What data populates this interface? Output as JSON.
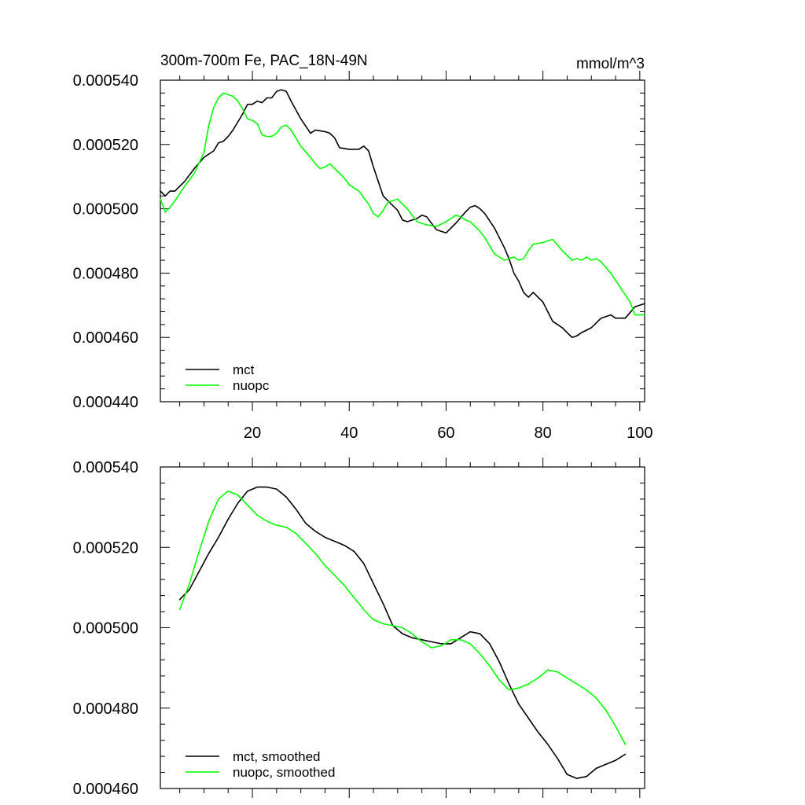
{
  "chart_data": [
    {
      "type": "line",
      "title": "300m-700m Fe, PAC_18N-49N",
      "units": "mmol/m^3",
      "xlabel": "",
      "ylabel": "",
      "xlim": [
        1,
        101
      ],
      "ylim": [
        0.00044,
        0.00054
      ],
      "xticks": [
        20,
        40,
        60,
        80,
        100
      ],
      "xtick_labels": [
        "20",
        "40",
        "60",
        "80",
        "100"
      ],
      "yticks": [
        0.00044,
        0.00046,
        0.00048,
        0.0005,
        0.00052,
        0.00054
      ],
      "ytick_labels": [
        "0.000440",
        "0.000460",
        "0.000480",
        "0.000500",
        "0.000520",
        "0.000540"
      ],
      "legend_position": "bottom-left",
      "series": [
        {
          "name": "mct",
          "color": "#000000",
          "x": [
            1,
            2,
            3,
            4,
            6,
            8,
            10,
            12,
            13,
            14,
            15,
            16,
            18,
            19,
            20,
            21,
            22,
            23,
            24,
            25,
            26,
            27,
            28,
            30,
            32,
            33,
            35,
            36,
            37,
            38,
            40,
            42,
            43,
            44,
            45,
            47,
            48,
            50,
            51,
            52,
            54,
            55,
            56,
            58,
            60,
            62,
            64,
            65,
            66,
            67,
            68,
            70,
            72,
            73,
            74,
            75,
            76,
            77,
            78,
            80,
            81,
            82,
            84,
            85,
            86,
            87,
            88,
            90,
            92,
            94,
            95,
            96,
            97,
            99,
            101
          ],
          "values": [
            0.0005055,
            0.000504,
            0.0005055,
            0.0005055,
            0.0005085,
            0.0005125,
            0.000516,
            0.000518,
            0.0005205,
            0.000521,
            0.0005225,
            0.0005245,
            0.0005295,
            0.0005325,
            0.0005325,
            0.0005335,
            0.000533,
            0.0005345,
            0.0005345,
            0.0005365,
            0.000537,
            0.0005365,
            0.0005335,
            0.000528,
            0.0005235,
            0.0005245,
            0.000524,
            0.0005235,
            0.000522,
            0.000519,
            0.0005185,
            0.0005185,
            0.0005195,
            0.000518,
            0.000513,
            0.000504,
            0.0005025,
            0.0004995,
            0.0004965,
            0.000496,
            0.000497,
            0.000498,
            0.0004975,
            0.0004935,
            0.0004925,
            0.0004955,
            0.000499,
            0.0005005,
            0.000501,
            0.0005,
            0.0004985,
            0.000494,
            0.000488,
            0.0004845,
            0.00048,
            0.0004775,
            0.000474,
            0.0004725,
            0.000474,
            0.000471,
            0.000468,
            0.000465,
            0.000463,
            0.0004615,
            0.00046,
            0.0004605,
            0.0004615,
            0.000463,
            0.000466,
            0.000467,
            0.000466,
            0.000466,
            0.000466,
            0.0004695,
            0.0004705
          ]
        },
        {
          "name": "nuopc",
          "color": "#00ff00",
          "x": [
            1,
            2,
            3,
            4,
            6,
            8,
            10,
            11,
            12,
            13,
            14,
            15,
            16,
            17,
            18,
            19,
            20,
            21,
            22,
            23,
            24,
            25,
            26,
            27,
            28,
            30,
            32,
            33,
            34,
            35,
            36,
            37,
            39,
            40,
            42,
            44,
            45,
            46,
            47,
            48,
            50,
            52,
            54,
            56,
            58,
            60,
            61,
            62,
            63,
            64,
            65,
            66,
            67,
            68,
            70,
            72,
            74,
            75,
            76,
            77,
            78,
            80,
            82,
            84,
            86,
            87,
            88,
            89,
            90,
            91,
            92,
            94,
            96,
            98,
            99,
            101
          ],
          "values": [
            0.000503,
            0.000499,
            0.0005005,
            0.0005025,
            0.000507,
            0.000511,
            0.0005175,
            0.000526,
            0.0005315,
            0.0005345,
            0.000536,
            0.0005355,
            0.000535,
            0.0005335,
            0.000531,
            0.000528,
            0.0005275,
            0.0005265,
            0.000523,
            0.0005225,
            0.0005225,
            0.0005235,
            0.0005255,
            0.000526,
            0.0005245,
            0.0005195,
            0.000516,
            0.000514,
            0.0005125,
            0.000513,
            0.000514,
            0.0005125,
            0.0005095,
            0.0005075,
            0.0005055,
            0.0005015,
            0.0004985,
            0.0004975,
            0.0004995,
            0.000502,
            0.000503,
            0.0005,
            0.000496,
            0.000495,
            0.0004945,
            0.000496,
            0.000497,
            0.000498,
            0.0004975,
            0.0004965,
            0.000496,
            0.0004945,
            0.000493,
            0.000491,
            0.000486,
            0.000484,
            0.000485,
            0.000484,
            0.0004845,
            0.000487,
            0.000489,
            0.0004895,
            0.0004905,
            0.000487,
            0.000484,
            0.0004845,
            0.000484,
            0.000485,
            0.000484,
            0.0004845,
            0.0004835,
            0.00048,
            0.0004755,
            0.000471,
            0.000467,
            0.000467
          ]
        }
      ]
    },
    {
      "type": "line",
      "title": "",
      "xlabel": "",
      "ylabel": "",
      "xlim": [
        1,
        101
      ],
      "ylim": [
        0.00046,
        0.00054
      ],
      "xticks": [
        20,
        40,
        60,
        80,
        100
      ],
      "xtick_labels": [],
      "yticks": [
        0.00046,
        0.00048,
        0.0005,
        0.00052,
        0.00054
      ],
      "ytick_labels": [
        "0.000460",
        "0.000480",
        "0.000500",
        "0.000520",
        "0.000540"
      ],
      "legend_position": "bottom-left",
      "series": [
        {
          "name": "mct, smoothed",
          "color": "#000000",
          "x": [
            5,
            7,
            9,
            11,
            13,
            15,
            17,
            19,
            21,
            23,
            25,
            27,
            29,
            31,
            33,
            35,
            37,
            39,
            41,
            43,
            45,
            47,
            49,
            51,
            53,
            55,
            57,
            59,
            61,
            63,
            65,
            67,
            69,
            71,
            73,
            75,
            77,
            79,
            81,
            83,
            85,
            87,
            89,
            91,
            93,
            95,
            97
          ],
          "values": [
            0.000507,
            0.0005095,
            0.000514,
            0.0005185,
            0.0005225,
            0.000527,
            0.000531,
            0.000534,
            0.000535,
            0.000535,
            0.0005345,
            0.0005325,
            0.0005295,
            0.000526,
            0.000524,
            0.0005225,
            0.0005215,
            0.0005205,
            0.000519,
            0.000516,
            0.000511,
            0.000506,
            0.0005005,
            0.0004985,
            0.0004975,
            0.000497,
            0.0004965,
            0.000496,
            0.000496,
            0.0004975,
            0.000499,
            0.0004985,
            0.000496,
            0.0004915,
            0.000486,
            0.000481,
            0.0004775,
            0.000474,
            0.000471,
            0.0004675,
            0.0004635,
            0.0004625,
            0.000463,
            0.000465,
            0.000466,
            0.000467,
            0.0004685
          ]
        },
        {
          "name": "nuopc, smoothed",
          "color": "#00ff00",
          "x": [
            5,
            7,
            9,
            11,
            13,
            15,
            17,
            19,
            21,
            23,
            25,
            27,
            29,
            31,
            33,
            35,
            37,
            39,
            41,
            43,
            45,
            47,
            49,
            51,
            53,
            55,
            57,
            59,
            61,
            63,
            65,
            67,
            69,
            71,
            73,
            75,
            77,
            79,
            81,
            83,
            85,
            87,
            89,
            91,
            93,
            95,
            97
          ],
          "values": [
            0.0005045,
            0.000511,
            0.000519,
            0.0005265,
            0.000532,
            0.000534,
            0.000533,
            0.0005305,
            0.000528,
            0.0005265,
            0.0005255,
            0.000525,
            0.0005235,
            0.000521,
            0.0005185,
            0.0005155,
            0.000513,
            0.0005105,
            0.0005075,
            0.0005045,
            0.000502,
            0.000501,
            0.0005005,
            0.0005,
            0.0004985,
            0.0004965,
            0.000495,
            0.0004955,
            0.000497,
            0.000497,
            0.000496,
            0.0004935,
            0.0004905,
            0.000487,
            0.0004845,
            0.000485,
            0.000486,
            0.0004875,
            0.0004895,
            0.000489,
            0.0004875,
            0.000486,
            0.0004845,
            0.0004825,
            0.0004795,
            0.0004755,
            0.000471
          ]
        }
      ]
    }
  ]
}
